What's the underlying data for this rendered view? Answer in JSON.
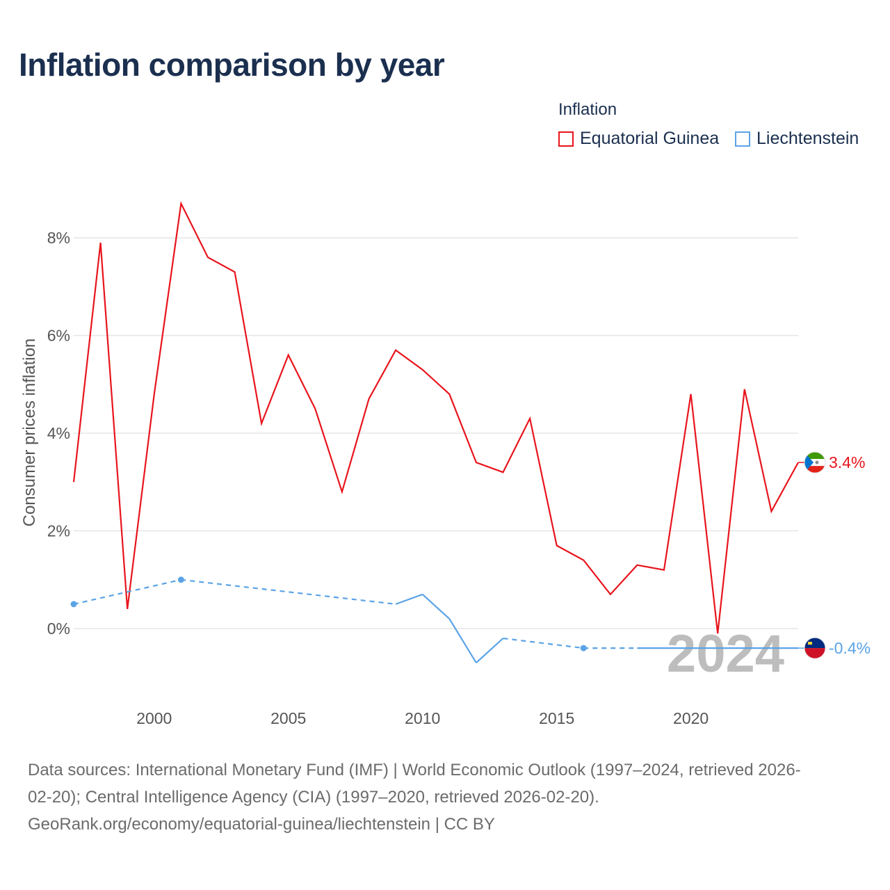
{
  "title": "Inflation comparison by year",
  "legend": {
    "title": "Inflation",
    "items": [
      {
        "label": "Equatorial Guinea",
        "color": "#e8141c"
      },
      {
        "label": "Liechtenstein",
        "color": "#5ba3e6"
      }
    ]
  },
  "sources": {
    "line1": "Data sources: International Monetary Fund (IMF) | World Economic Outlook (1997–2024, retrieved 2026-",
    "line2": "02-20); Central Intelligence Agency (CIA) (1997–2020, retrieved 2026-02-20).",
    "line3": "GeoRank.org/economy/equatorial-guinea/liechtenstein | CC BY"
  },
  "chart_data": {
    "type": "line",
    "title": "Inflation comparison by year",
    "xlabel": "",
    "ylabel": "Consumer prices inflation",
    "xlim": [
      1997,
      2024
    ],
    "ylim": [
      -1.5,
      9.2
    ],
    "x_ticks": [
      2000,
      2005,
      2010,
      2015,
      2020
    ],
    "x_tick_labels": [
      "2000",
      "2005",
      "2010",
      "2015",
      "2020"
    ],
    "y_ticks": [
      0,
      2,
      4,
      6,
      8
    ],
    "y_tick_labels": [
      "0%",
      "2%",
      "4%",
      "6%",
      "8%"
    ],
    "year_watermark": "2024",
    "series": [
      {
        "name": "Equatorial Guinea",
        "color": "#e8141c",
        "end_label": "3.4%",
        "points": [
          [
            1997,
            3.0
          ],
          [
            1998,
            7.9
          ],
          [
            1999,
            0.4
          ],
          [
            2000,
            4.8
          ],
          [
            2001,
            8.7
          ],
          [
            2002,
            7.6
          ],
          [
            2003,
            7.3
          ],
          [
            2004,
            4.2
          ],
          [
            2005,
            5.6
          ],
          [
            2006,
            4.5
          ],
          [
            2007,
            2.8
          ],
          [
            2008,
            4.7
          ],
          [
            2009,
            5.7
          ],
          [
            2010,
            5.3
          ],
          [
            2011,
            4.8
          ],
          [
            2012,
            3.4
          ],
          [
            2013,
            3.2
          ],
          [
            2014,
            4.3
          ],
          [
            2015,
            1.7
          ],
          [
            2016,
            1.4
          ],
          [
            2017,
            0.7
          ],
          [
            2018,
            1.3
          ],
          [
            2019,
            1.2
          ],
          [
            2020,
            4.8
          ],
          [
            2021,
            -0.1
          ],
          [
            2022,
            4.9
          ],
          [
            2023,
            2.4
          ],
          [
            2024,
            3.4
          ]
        ]
      },
      {
        "name": "Liechtenstein",
        "color": "#5ba3e6",
        "end_label": "-0.4%",
        "points": [
          [
            1997,
            0.5
          ],
          [
            2001,
            1.0
          ],
          [
            2009,
            0.5
          ],
          [
            2010,
            0.7
          ],
          [
            2011,
            0.2
          ],
          [
            2012,
            -0.7
          ],
          [
            2013,
            -0.2
          ],
          [
            2016,
            -0.4
          ],
          [
            2024,
            -0.4
          ]
        ],
        "dashed_segments": [
          [
            1997,
            2001
          ],
          [
            2001,
            2009
          ],
          [
            2013,
            2016
          ],
          [
            2016,
            2018
          ]
        ],
        "markers": [
          1997,
          2001,
          2016
        ]
      }
    ]
  }
}
